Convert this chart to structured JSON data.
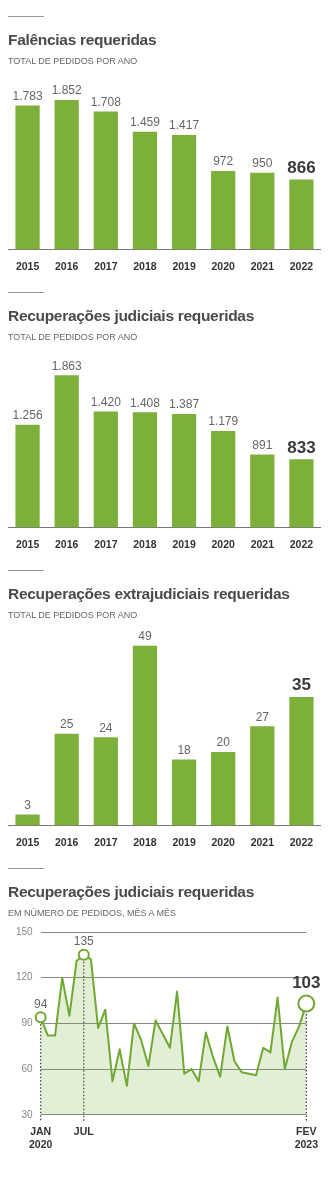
{
  "chart_data": [
    {
      "type": "bar",
      "title": "Falências requeridas",
      "subtitle": "TOTAL DE PEDIDOS POR ANO",
      "categories": [
        "2015",
        "2016",
        "2017",
        "2018",
        "2019",
        "2020",
        "2021",
        "2022"
      ],
      "values": [
        1783,
        1852,
        1708,
        1459,
        1417,
        972,
        950,
        866
      ],
      "value_labels": [
        "1.783",
        "1.852",
        "1.708",
        "1.459",
        "1.417",
        "972",
        "950",
        "866"
      ],
      "color": "#7cb03a",
      "legend": false,
      "grid": false
    },
    {
      "type": "bar",
      "title": "Recuperações judiciais requeridas",
      "subtitle": "TOTAL DE PEDIDOS POR ANO",
      "categories": [
        "2015",
        "2016",
        "2017",
        "2018",
        "2019",
        "2020",
        "2021",
        "2022"
      ],
      "values": [
        1256,
        1863,
        1420,
        1408,
        1387,
        1179,
        891,
        833
      ],
      "value_labels": [
        "1.256",
        "1.863",
        "1.420",
        "1.408",
        "1.387",
        "1.179",
        "891",
        "833"
      ],
      "color": "#7cb03a",
      "legend": false,
      "grid": false
    },
    {
      "type": "bar",
      "title": "Recuperações extrajudiciais requeridas",
      "subtitle": "TOTAL DE PEDIDOS POR ANO",
      "categories": [
        "2015",
        "2016",
        "2017",
        "2018",
        "2019",
        "2020",
        "2021",
        "2022"
      ],
      "values": [
        3,
        25,
        24,
        49,
        18,
        20,
        27,
        35
      ],
      "value_labels": [
        "3",
        "25",
        "24",
        "49",
        "18",
        "20",
        "27",
        "35"
      ],
      "color": "#7cb03a",
      "legend": false,
      "grid": false
    },
    {
      "type": "area",
      "title": "Recuperações judiciais requeridas",
      "subtitle": "EM NÚMERO DE PEDIDOS, MÊS A MÊS",
      "categories": [
        "JAN 2020",
        null,
        null,
        null,
        null,
        null,
        "JUL",
        null,
        null,
        null,
        null,
        null,
        null,
        null,
        null,
        null,
        null,
        null,
        null,
        null,
        null,
        null,
        null,
        null,
        null,
        null,
        null,
        null,
        null,
        null,
        null,
        null,
        null,
        null,
        null,
        null,
        null,
        "FEV 2023"
      ],
      "values": [
        94,
        82,
        82,
        120,
        95,
        131,
        135,
        132,
        87,
        99,
        52,
        73,
        49,
        90,
        79,
        62,
        92,
        83,
        74,
        111,
        57,
        60,
        52,
        84,
        68,
        55,
        88,
        65,
        58,
        57,
        56,
        74,
        71,
        107,
        60,
        78,
        88,
        103
      ],
      "value_labels": [
        "94",
        null,
        null,
        null,
        null,
        null,
        "135",
        null,
        null,
        null,
        null,
        null,
        null,
        null,
        null,
        null,
        null,
        null,
        null,
        null,
        null,
        null,
        null,
        null,
        null,
        null,
        null,
        null,
        null,
        null,
        null,
        null,
        null,
        null,
        null,
        null,
        null,
        "103"
      ],
      "color": "#6fa832",
      "ylim": [
        30,
        150
      ],
      "yticks": [
        30,
        60,
        90,
        120,
        150
      ],
      "grid": "y",
      "legend": false,
      "ref_lines": [
        {
          "axis": "x",
          "value": "JAN 2020",
          "line_style": "dotted"
        },
        {
          "axis": "x",
          "value": "JUL",
          "line_style": "dotted"
        },
        {
          "axis": "x",
          "value": "FEV 2023",
          "line_style": "dotted"
        }
      ]
    }
  ]
}
